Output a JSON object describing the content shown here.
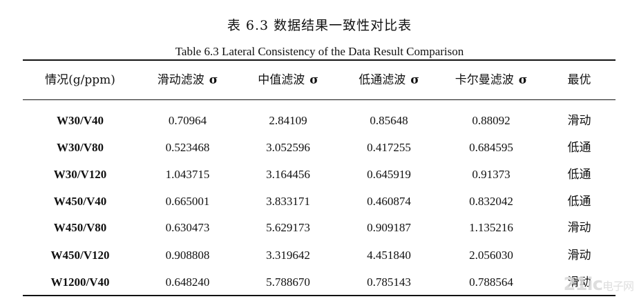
{
  "caption": {
    "chinese": "表 6.3  数据结果一致性对比表",
    "english": "Table 6.3 Lateral Consistency of the Data Result Comparison"
  },
  "table": {
    "sigma_symbol": "σ",
    "columns": [
      "情况(g/ppm)",
      "滑动滤波",
      "中值滤波",
      "低通滤波",
      "卡尔曼滤波",
      "最优"
    ],
    "rows": [
      {
        "case": "W30/V40",
        "v": [
          "0.70964",
          "2.84109",
          "0.85648",
          "0.88092"
        ],
        "best": "滑动"
      },
      {
        "case": "W30/V80",
        "v": [
          "0.523468",
          "3.052596",
          "0.417255",
          "0.684595"
        ],
        "best": "低通"
      },
      {
        "case": "W30/V120",
        "v": [
          "1.043715",
          "3.164456",
          "0.645919",
          "0.91373"
        ],
        "best": "低通"
      },
      {
        "case": "W450/V40",
        "v": [
          "0.665001",
          "3.833171",
          "0.460874",
          "0.832042"
        ],
        "best": "低通"
      },
      {
        "case": "W450/V80",
        "v": [
          "0.630473",
          "5.629173",
          "0.909187",
          "1.135216"
        ],
        "best": "滑动"
      },
      {
        "case": "W450/V120",
        "v": [
          "0.908808",
          "3.319642",
          "4.451840",
          "2.056030"
        ],
        "best": "滑动"
      },
      {
        "case": "W1200/V40",
        "v": [
          "0.648240",
          "5.788670",
          "0.785143",
          "0.788564"
        ],
        "best": "滑动"
      }
    ]
  },
  "watermark": {
    "main": "21ic",
    "sub": "电子网"
  }
}
